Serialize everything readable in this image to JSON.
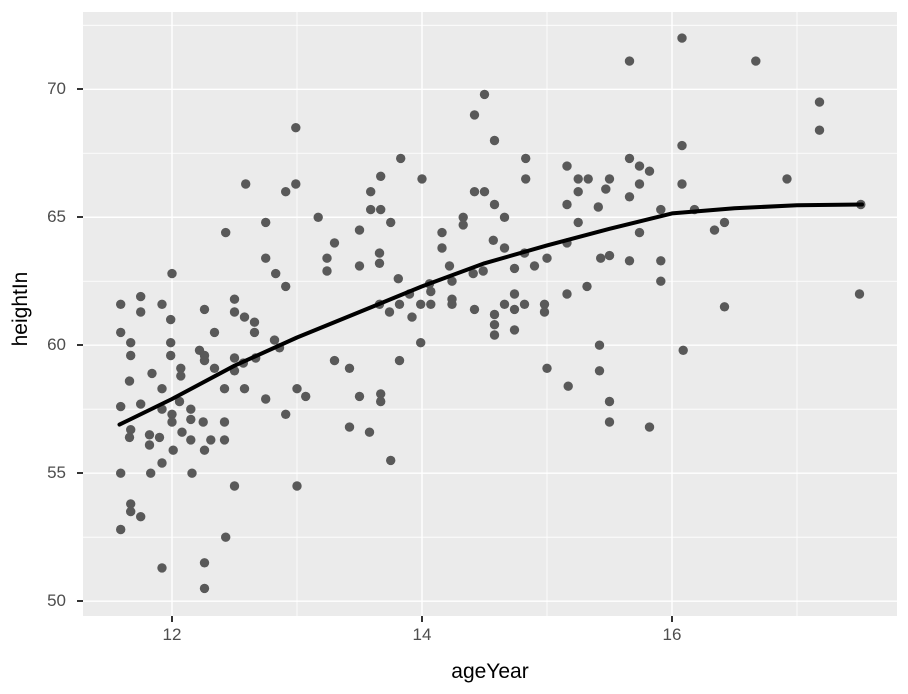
{
  "figure": {
    "background": "#FFFFFF",
    "panel_background": "#EBEBEB",
    "gridline_color": "#FFFFFF",
    "point_color": "#595959",
    "smooth_line_color": "#000000",
    "axis_text_color": "#4D4D4D",
    "axis_title_color": "#000000",
    "tick_mark_color": "#333333"
  },
  "chart_data": {
    "type": "scatter",
    "title": "",
    "xlabel": "ageYear",
    "ylabel": "heightIn",
    "legend": "none",
    "grid": "major+minor",
    "xlim": [
      11.288,
      17.8
    ],
    "ylim": [
      49.42,
      73.02
    ],
    "x_major_ticks": [
      12,
      14,
      16
    ],
    "x_tick_labels": [
      "12",
      "14",
      "16"
    ],
    "x_minor_ticks": [
      13,
      15,
      17
    ],
    "y_major_ticks": [
      50,
      55,
      60,
      65,
      70
    ],
    "y_tick_labels": [
      "50",
      "55",
      "60",
      "65",
      "70"
    ],
    "y_minor_ticks": [
      52.5,
      57.5,
      62.5,
      67.5,
      72.5
    ],
    "smooth_line": [
      [
        11.58,
        56.9
      ],
      [
        12.0,
        57.9
      ],
      [
        12.5,
        59.2
      ],
      [
        13.0,
        60.3
      ],
      [
        13.5,
        61.3
      ],
      [
        14.0,
        62.3
      ],
      [
        14.5,
        63.2
      ],
      [
        15.0,
        63.9
      ],
      [
        15.5,
        64.55
      ],
      [
        16.0,
        65.15
      ],
      [
        16.5,
        65.35
      ],
      [
        17.0,
        65.47
      ],
      [
        17.52,
        65.5
      ]
    ],
    "points": [
      [
        12.99,
        68.5
      ],
      [
        12.59,
        66.3
      ],
      [
        12.91,
        66.0
      ],
      [
        12.99,
        66.3
      ],
      [
        12.75,
        64.8
      ],
      [
        12.43,
        64.4
      ],
      [
        14.5,
        69.8
      ],
      [
        14.42,
        69.0
      ],
      [
        14.58,
        68.0
      ],
      [
        13.83,
        67.3
      ],
      [
        14.83,
        67.3
      ],
      [
        15.16,
        67.0
      ],
      [
        13.67,
        66.6
      ],
      [
        14.0,
        66.5
      ],
      [
        14.83,
        66.5
      ],
      [
        15.25,
        66.5
      ],
      [
        15.33,
        66.5
      ],
      [
        13.59,
        66.0
      ],
      [
        14.42,
        66.0
      ],
      [
        14.5,
        66.0
      ],
      [
        15.25,
        66.0
      ],
      [
        15.47,
        66.1
      ],
      [
        14.58,
        65.5
      ],
      [
        15.16,
        65.5
      ],
      [
        15.41,
        65.4
      ],
      [
        13.59,
        65.3
      ],
      [
        13.67,
        65.3
      ],
      [
        14.66,
        65.0
      ],
      [
        13.17,
        65.0
      ],
      [
        13.75,
        64.8
      ],
      [
        14.33,
        65.0
      ],
      [
        14.33,
        64.7
      ],
      [
        15.25,
        64.8
      ],
      [
        13.5,
        64.5
      ],
      [
        14.16,
        64.4
      ],
      [
        14.16,
        63.8
      ],
      [
        16.08,
        72.0
      ],
      [
        15.66,
        71.1
      ],
      [
        16.67,
        71.1
      ],
      [
        17.18,
        69.5
      ],
      [
        17.18,
        68.4
      ],
      [
        16.08,
        67.8
      ],
      [
        15.66,
        67.3
      ],
      [
        15.74,
        67.0
      ],
      [
        15.82,
        66.8
      ],
      [
        15.5,
        66.5
      ],
      [
        15.74,
        66.3
      ],
      [
        16.08,
        66.3
      ],
      [
        15.66,
        65.8
      ],
      [
        16.92,
        66.5
      ],
      [
        17.51,
        65.5
      ],
      [
        15.91,
        65.3
      ],
      [
        16.18,
        65.3
      ],
      [
        16.42,
        64.8
      ],
      [
        16.34,
        64.5
      ],
      [
        15.74,
        64.4
      ],
      [
        15.5,
        63.5
      ],
      [
        15.43,
        63.4
      ],
      [
        15.66,
        63.3
      ],
      [
        15.91,
        63.3
      ],
      [
        15.91,
        62.5
      ],
      [
        17.5,
        62.0
      ],
      [
        16.42,
        61.5
      ],
      [
        16.09,
        59.8
      ],
      [
        15.5,
        57.8
      ],
      [
        15.5,
        57.0
      ],
      [
        15.82,
        56.8
      ],
      [
        12.75,
        63.4
      ],
      [
        12.0,
        62.8
      ],
      [
        12.83,
        62.8
      ],
      [
        12.91,
        62.3
      ],
      [
        11.59,
        61.6
      ],
      [
        11.75,
        61.9
      ],
      [
        11.75,
        61.3
      ],
      [
        11.92,
        61.6
      ],
      [
        11.59,
        60.5
      ],
      [
        11.99,
        61.0
      ],
      [
        12.5,
        61.8
      ],
      [
        12.5,
        61.3
      ],
      [
        12.26,
        61.4
      ],
      [
        12.58,
        61.1
      ],
      [
        12.66,
        60.9
      ],
      [
        12.66,
        60.5
      ],
      [
        12.82,
        60.2
      ],
      [
        12.86,
        59.9
      ],
      [
        11.67,
        60.1
      ],
      [
        11.67,
        59.6
      ],
      [
        11.99,
        60.1
      ],
      [
        11.99,
        59.6
      ],
      [
        12.22,
        59.8
      ],
      [
        12.26,
        59.6
      ],
      [
        12.26,
        59.4
      ],
      [
        12.34,
        60.5
      ],
      [
        12.07,
        59.1
      ],
      [
        12.07,
        58.8
      ],
      [
        11.84,
        58.9
      ],
      [
        11.66,
        58.6
      ],
      [
        11.92,
        58.3
      ],
      [
        12.34,
        59.1
      ],
      [
        12.42,
        58.3
      ],
      [
        12.58,
        58.3
      ],
      [
        12.67,
        59.5
      ],
      [
        12.5,
        59.5
      ],
      [
        12.57,
        59.3
      ],
      [
        12.5,
        59.0
      ],
      [
        13.0,
        58.3
      ],
      [
        12.75,
        57.9
      ],
      [
        11.59,
        57.6
      ],
      [
        11.75,
        57.7
      ],
      [
        11.92,
        57.5
      ],
      [
        12.0,
        57.3
      ],
      [
        12.0,
        57.0
      ],
      [
        12.08,
        56.6
      ],
      [
        12.15,
        57.5
      ],
      [
        12.15,
        57.1
      ],
      [
        12.25,
        57.0
      ],
      [
        12.42,
        57.0
      ],
      [
        12.91,
        57.3
      ],
      [
        11.67,
        56.7
      ],
      [
        11.66,
        56.4
      ],
      [
        11.82,
        56.5
      ],
      [
        11.9,
        56.4
      ],
      [
        11.82,
        56.1
      ],
      [
        12.15,
        56.3
      ],
      [
        12.31,
        56.3
      ],
      [
        12.42,
        56.3
      ],
      [
        12.26,
        55.9
      ],
      [
        12.01,
        55.9
      ],
      [
        12.06,
        57.8
      ],
      [
        11.92,
        55.4
      ],
      [
        13.3,
        64.0
      ],
      [
        13.24,
        63.4
      ],
      [
        13.24,
        62.9
      ],
      [
        13.5,
        63.1
      ],
      [
        13.66,
        63.6
      ],
      [
        13.66,
        63.2
      ],
      [
        14.57,
        64.1
      ],
      [
        14.66,
        63.8
      ],
      [
        14.82,
        63.6
      ],
      [
        14.74,
        63.0
      ],
      [
        14.9,
        63.1
      ],
      [
        15.0,
        63.4
      ],
      [
        15.16,
        64.0
      ],
      [
        14.22,
        63.1
      ],
      [
        14.24,
        62.5
      ],
      [
        14.41,
        62.8
      ],
      [
        14.49,
        62.9
      ],
      [
        13.81,
        62.6
      ],
      [
        13.66,
        61.6
      ],
      [
        13.74,
        61.3
      ],
      [
        13.82,
        61.6
      ],
      [
        13.9,
        62.0
      ],
      [
        13.92,
        61.1
      ],
      [
        13.99,
        61.6
      ],
      [
        14.06,
        62.4
      ],
      [
        14.07,
        62.1
      ],
      [
        14.07,
        61.6
      ],
      [
        14.24,
        61.8
      ],
      [
        14.24,
        61.6
      ],
      [
        14.42,
        61.4
      ],
      [
        14.58,
        61.2
      ],
      [
        14.58,
        60.8
      ],
      [
        14.58,
        60.4
      ],
      [
        14.66,
        61.6
      ],
      [
        14.74,
        62.0
      ],
      [
        14.74,
        61.4
      ],
      [
        14.82,
        61.6
      ],
      [
        14.98,
        61.6
      ],
      [
        14.98,
        61.3
      ],
      [
        15.16,
        62.0
      ],
      [
        15.32,
        62.3
      ],
      [
        14.74,
        60.6
      ],
      [
        15.42,
        60.0
      ],
      [
        13.99,
        60.1
      ],
      [
        13.3,
        59.4
      ],
      [
        13.42,
        59.1
      ],
      [
        13.82,
        59.4
      ],
      [
        13.07,
        58.0
      ],
      [
        13.5,
        58.0
      ],
      [
        13.67,
        58.1
      ],
      [
        13.67,
        57.8
      ],
      [
        15.0,
        59.1
      ],
      [
        15.42,
        59.0
      ],
      [
        15.17,
        58.4
      ],
      [
        13.42,
        56.8
      ],
      [
        13.58,
        56.6
      ],
      [
        13.75,
        55.5
      ],
      [
        11.59,
        55.0
      ],
      [
        11.83,
        55.0
      ],
      [
        12.16,
        55.0
      ],
      [
        12.5,
        54.5
      ],
      [
        13.0,
        54.5
      ],
      [
        11.67,
        53.8
      ],
      [
        11.67,
        53.5
      ],
      [
        11.75,
        53.3
      ],
      [
        11.59,
        52.8
      ],
      [
        12.43,
        52.5
      ],
      [
        11.92,
        51.3
      ],
      [
        12.26,
        51.5
      ],
      [
        12.26,
        50.5
      ]
    ]
  }
}
